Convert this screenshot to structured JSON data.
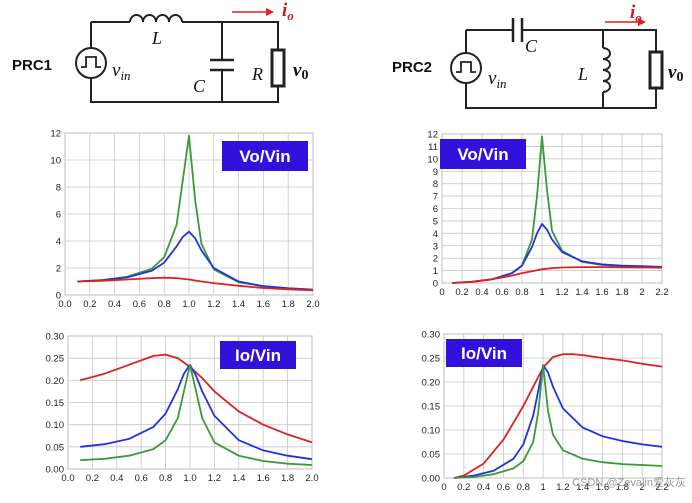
{
  "circuits": {
    "prc1": {
      "label": "PRC1",
      "source": "v",
      "source_sub": "in",
      "inductor": "L",
      "capacitor": "C",
      "resistor": "R",
      "output": "v",
      "output_sub": "0",
      "current": "i",
      "current_sub": "o"
    },
    "prc2": {
      "label": "PRC2",
      "source": "v",
      "source_sub": "in",
      "inductor": "L",
      "capacitor": "C",
      "output": "v",
      "output_sub": "0",
      "current": "i",
      "current_sub": "o"
    }
  },
  "colors": {
    "green": "#3a9a3a",
    "blue": "#2233dd",
    "red": "#dd2222",
    "badge": "#3311dd",
    "badge_text": "#ffffff",
    "grid": "#c8c8c8"
  },
  "watermark": "CSDN @Zevalin爱灰灰",
  "chart_data": [
    {
      "id": "prc1_vo",
      "type": "line",
      "title": "Vo/Vin",
      "xlim": [
        0,
        2
      ],
      "ylim": [
        0,
        12
      ],
      "xticks": [
        "0.0",
        "0.2",
        "0.4",
        "0.6",
        "0.8",
        "1.0",
        "1.2",
        "1.4",
        "1.6",
        "1.8",
        "2.0"
      ],
      "yticks": [
        "0",
        "2",
        "4",
        "6",
        "8",
        "10",
        "12"
      ],
      "series": [
        {
          "name": "green",
          "color": "#3a9a3a",
          "x": [
            0.1,
            0.3,
            0.5,
            0.7,
            0.8,
            0.9,
            0.95,
            1.0,
            1.05,
            1.1,
            1.2,
            1.4,
            1.6,
            1.8,
            2.0
          ],
          "y": [
            1.0,
            1.1,
            1.35,
            1.95,
            2.8,
            5.2,
            8.5,
            11.8,
            7.0,
            3.8,
            1.9,
            0.95,
            0.65,
            0.5,
            0.4
          ]
        },
        {
          "name": "blue",
          "color": "#2233dd",
          "x": [
            0.1,
            0.3,
            0.5,
            0.7,
            0.8,
            0.9,
            0.95,
            1.0,
            1.05,
            1.1,
            1.2,
            1.4,
            1.6,
            1.8,
            2.0
          ],
          "y": [
            1.0,
            1.1,
            1.3,
            1.8,
            2.4,
            3.6,
            4.3,
            4.7,
            4.2,
            3.3,
            2.0,
            1.0,
            0.65,
            0.5,
            0.4
          ]
        },
        {
          "name": "red",
          "color": "#dd2222",
          "x": [
            0.1,
            0.3,
            0.5,
            0.7,
            0.8,
            0.9,
            1.0,
            1.1,
            1.2,
            1.4,
            1.6,
            1.8,
            2.0
          ],
          "y": [
            1.0,
            1.05,
            1.15,
            1.25,
            1.28,
            1.25,
            1.15,
            1.0,
            0.88,
            0.68,
            0.52,
            0.42,
            0.35
          ]
        }
      ]
    },
    {
      "id": "prc2_vo",
      "type": "line",
      "title": "Vo/Vin",
      "xlim": [
        0,
        2.2
      ],
      "ylim": [
        0,
        12
      ],
      "xticks": [
        "0",
        "0.2",
        "0.4",
        "0.6",
        "0.8",
        "1",
        "1.2",
        "1.4",
        "1.6",
        "1.8",
        "2",
        "2.2"
      ],
      "yticks": [
        "0",
        "1",
        "2",
        "3",
        "4",
        "5",
        "6",
        "7",
        "8",
        "9",
        "10",
        "11",
        "12"
      ],
      "series": [
        {
          "name": "green",
          "color": "#3a9a3a",
          "x": [
            0.1,
            0.3,
            0.5,
            0.7,
            0.8,
            0.9,
            0.95,
            1.0,
            1.05,
            1.1,
            1.2,
            1.4,
            1.6,
            1.8,
            2.0,
            2.2
          ],
          "y": [
            0.0,
            0.1,
            0.3,
            0.8,
            1.4,
            3.5,
            7.0,
            11.8,
            7.5,
            4.2,
            2.6,
            1.7,
            1.45,
            1.35,
            1.3,
            1.25
          ]
        },
        {
          "name": "blue",
          "color": "#2233dd",
          "x": [
            0.1,
            0.3,
            0.5,
            0.7,
            0.8,
            0.9,
            0.95,
            1.0,
            1.05,
            1.1,
            1.2,
            1.4,
            1.6,
            1.8,
            2.0,
            2.2
          ],
          "y": [
            0.0,
            0.1,
            0.3,
            0.8,
            1.4,
            2.9,
            4.0,
            4.75,
            4.3,
            3.5,
            2.5,
            1.75,
            1.5,
            1.4,
            1.35,
            1.3
          ]
        },
        {
          "name": "red",
          "color": "#dd2222",
          "x": [
            0.1,
            0.3,
            0.5,
            0.7,
            0.8,
            0.9,
            1.0,
            1.1,
            1.2,
            1.4,
            1.6,
            1.8,
            2.0,
            2.2
          ],
          "y": [
            0.0,
            0.1,
            0.3,
            0.6,
            0.8,
            0.95,
            1.1,
            1.2,
            1.25,
            1.28,
            1.28,
            1.26,
            1.25,
            1.23
          ]
        }
      ]
    },
    {
      "id": "prc1_io",
      "type": "line",
      "title": "Io/Vin",
      "xlim": [
        0,
        2
      ],
      "ylim": [
        0,
        0.3
      ],
      "xticks": [
        "0.0",
        "0.2",
        "0.4",
        "0.6",
        "0.8",
        "1.0",
        "1.2",
        "1.4",
        "1.6",
        "1.8",
        "2.0"
      ],
      "yticks": [
        "0.00",
        "0.05",
        "0.10",
        "0.15",
        "0.20",
        "0.25",
        "0.30"
      ],
      "series": [
        {
          "name": "red",
          "color": "#dd2222",
          "x": [
            0.1,
            0.3,
            0.5,
            0.7,
            0.8,
            0.9,
            1.0,
            1.1,
            1.2,
            1.4,
            1.6,
            1.8,
            2.0
          ],
          "y": [
            0.2,
            0.215,
            0.235,
            0.255,
            0.258,
            0.25,
            0.23,
            0.205,
            0.175,
            0.13,
            0.1,
            0.078,
            0.06
          ]
        },
        {
          "name": "blue",
          "color": "#2233dd",
          "x": [
            0.1,
            0.3,
            0.5,
            0.7,
            0.8,
            0.9,
            0.95,
            1.0,
            1.05,
            1.1,
            1.2,
            1.4,
            1.6,
            1.8,
            2.0
          ],
          "y": [
            0.05,
            0.056,
            0.068,
            0.095,
            0.125,
            0.18,
            0.215,
            0.235,
            0.21,
            0.175,
            0.12,
            0.065,
            0.042,
            0.03,
            0.022
          ]
        },
        {
          "name": "green",
          "color": "#3a9a3a",
          "x": [
            0.1,
            0.3,
            0.5,
            0.7,
            0.8,
            0.9,
            0.95,
            1.0,
            1.05,
            1.1,
            1.2,
            1.4,
            1.6,
            1.8,
            2.0
          ],
          "y": [
            0.02,
            0.023,
            0.03,
            0.045,
            0.065,
            0.115,
            0.175,
            0.235,
            0.175,
            0.115,
            0.06,
            0.03,
            0.018,
            0.012,
            0.009
          ]
        }
      ]
    },
    {
      "id": "prc2_io",
      "type": "line",
      "title": "Io/Vin",
      "xlim": [
        0,
        2.2
      ],
      "ylim": [
        0,
        0.3
      ],
      "xticks": [
        "0",
        "0.2",
        "0.4",
        "0.6",
        "0.8",
        "1",
        "1.2",
        "1.4",
        "1.6",
        "1.8",
        "2",
        "2.2"
      ],
      "yticks": [
        "0.00",
        "0.05",
        "0.10",
        "0.15",
        "0.20",
        "0.25",
        "0.30"
      ],
      "series": [
        {
          "name": "red",
          "color": "#dd2222",
          "x": [
            0.1,
            0.2,
            0.4,
            0.6,
            0.8,
            0.9,
            1.0,
            1.1,
            1.2,
            1.3,
            1.4,
            1.6,
            1.8,
            2.0,
            2.2
          ],
          "y": [
            0.0,
            0.005,
            0.03,
            0.08,
            0.15,
            0.19,
            0.23,
            0.252,
            0.258,
            0.258,
            0.256,
            0.25,
            0.245,
            0.238,
            0.232
          ]
        },
        {
          "name": "blue",
          "color": "#2233dd",
          "x": [
            0.1,
            0.3,
            0.5,
            0.7,
            0.8,
            0.9,
            0.95,
            1.0,
            1.05,
            1.1,
            1.2,
            1.4,
            1.6,
            1.8,
            2.0,
            2.2
          ],
          "y": [
            0.0,
            0.005,
            0.015,
            0.04,
            0.07,
            0.13,
            0.18,
            0.235,
            0.22,
            0.19,
            0.145,
            0.105,
            0.087,
            0.077,
            0.07,
            0.065
          ]
        },
        {
          "name": "green",
          "color": "#3a9a3a",
          "x": [
            0.1,
            0.3,
            0.5,
            0.7,
            0.8,
            0.9,
            0.95,
            1.0,
            1.05,
            1.1,
            1.2,
            1.4,
            1.6,
            1.8,
            2.0,
            2.2
          ],
          "y": [
            0.0,
            0.002,
            0.008,
            0.02,
            0.035,
            0.075,
            0.135,
            0.235,
            0.14,
            0.09,
            0.058,
            0.04,
            0.033,
            0.029,
            0.027,
            0.025
          ]
        }
      ]
    }
  ]
}
